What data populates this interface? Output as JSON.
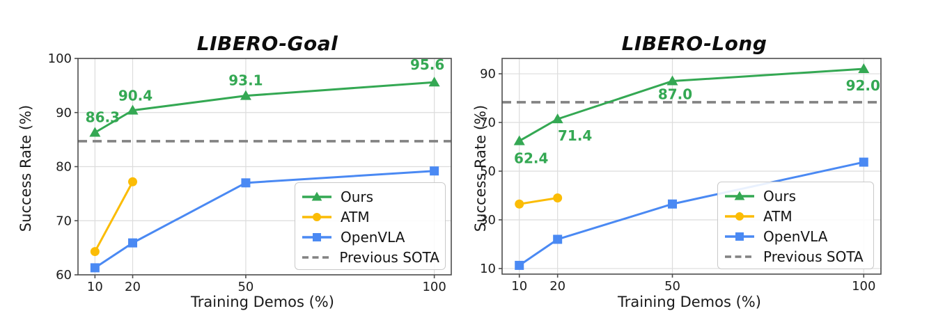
{
  "figure": {
    "background": "#ffffff"
  },
  "colors": {
    "ours": "#34a853",
    "atm": "#fbbc05",
    "openvla": "#4a89f3",
    "previous_sota": "#828282",
    "grid": "#dcdcdc",
    "spine": "#4d4d4d",
    "tick_text": "#1c1c1c",
    "value_label": "#34a853"
  },
  "chart_data": [
    {
      "type": "line",
      "title": "LIBERO-Goal",
      "xlabel": "Training Demos (%)",
      "ylabel": "Success Rate (%)",
      "xticks": [
        10,
        20,
        50,
        100
      ],
      "yticks": [
        60,
        70,
        80,
        90,
        100
      ],
      "xlim": [
        5.5,
        104.5
      ],
      "ylim": [
        60,
        100
      ],
      "grid": true,
      "legend_loc": "lower right",
      "series": [
        {
          "name": "Ours",
          "marker": "triangle",
          "color_key": "ours",
          "x": [
            10,
            20,
            50,
            100
          ],
          "values": [
            86.3,
            90.4,
            93.1,
            95.6
          ],
          "point_labels": [
            "86.3",
            "90.4",
            "93.1",
            "95.6"
          ]
        },
        {
          "name": "ATM",
          "marker": "circle",
          "color_key": "atm",
          "x": [
            10,
            20
          ],
          "values": [
            64.3,
            77.2
          ]
        },
        {
          "name": "OpenVLA",
          "marker": "square",
          "color_key": "openvla",
          "x": [
            10,
            20,
            50,
            100
          ],
          "values": [
            61.3,
            65.9,
            77.0,
            79.2
          ]
        },
        {
          "name": "Previous SOTA",
          "kind": "hline",
          "dashed": true,
          "color_key": "previous_sota",
          "value": 84.7
        }
      ]
    },
    {
      "type": "line",
      "title": "LIBERO-Long",
      "xlabel": "Training Demos (%)",
      "ylabel": "Success Rate (%)",
      "xticks": [
        10,
        20,
        50,
        100
      ],
      "yticks": [
        10,
        30,
        50,
        70,
        90
      ],
      "xlim": [
        5.5,
        104.5
      ],
      "ylim": [
        7.7,
        96.3
      ],
      "grid": true,
      "legend_loc": "lower right",
      "series": [
        {
          "name": "Ours",
          "marker": "triangle",
          "color_key": "ours",
          "x": [
            10,
            20,
            50,
            100
          ],
          "values": [
            62.4,
            71.4,
            87.0,
            92.0
          ],
          "point_labels": [
            "62.4",
            "71.4",
            "87.0",
            "92.0"
          ]
        },
        {
          "name": "ATM",
          "marker": "circle",
          "color_key": "atm",
          "x": [
            10,
            20
          ],
          "values": [
            36.5,
            39.0
          ]
        },
        {
          "name": "OpenVLA",
          "marker": "square",
          "color_key": "openvla",
          "x": [
            10,
            20,
            50,
            100
          ],
          "values": [
            11.3,
            22.0,
            36.5,
            53.7
          ]
        },
        {
          "name": "Previous SOTA",
          "kind": "hline",
          "dashed": true,
          "color_key": "previous_sota",
          "value": 78.3
        }
      ]
    }
  ]
}
